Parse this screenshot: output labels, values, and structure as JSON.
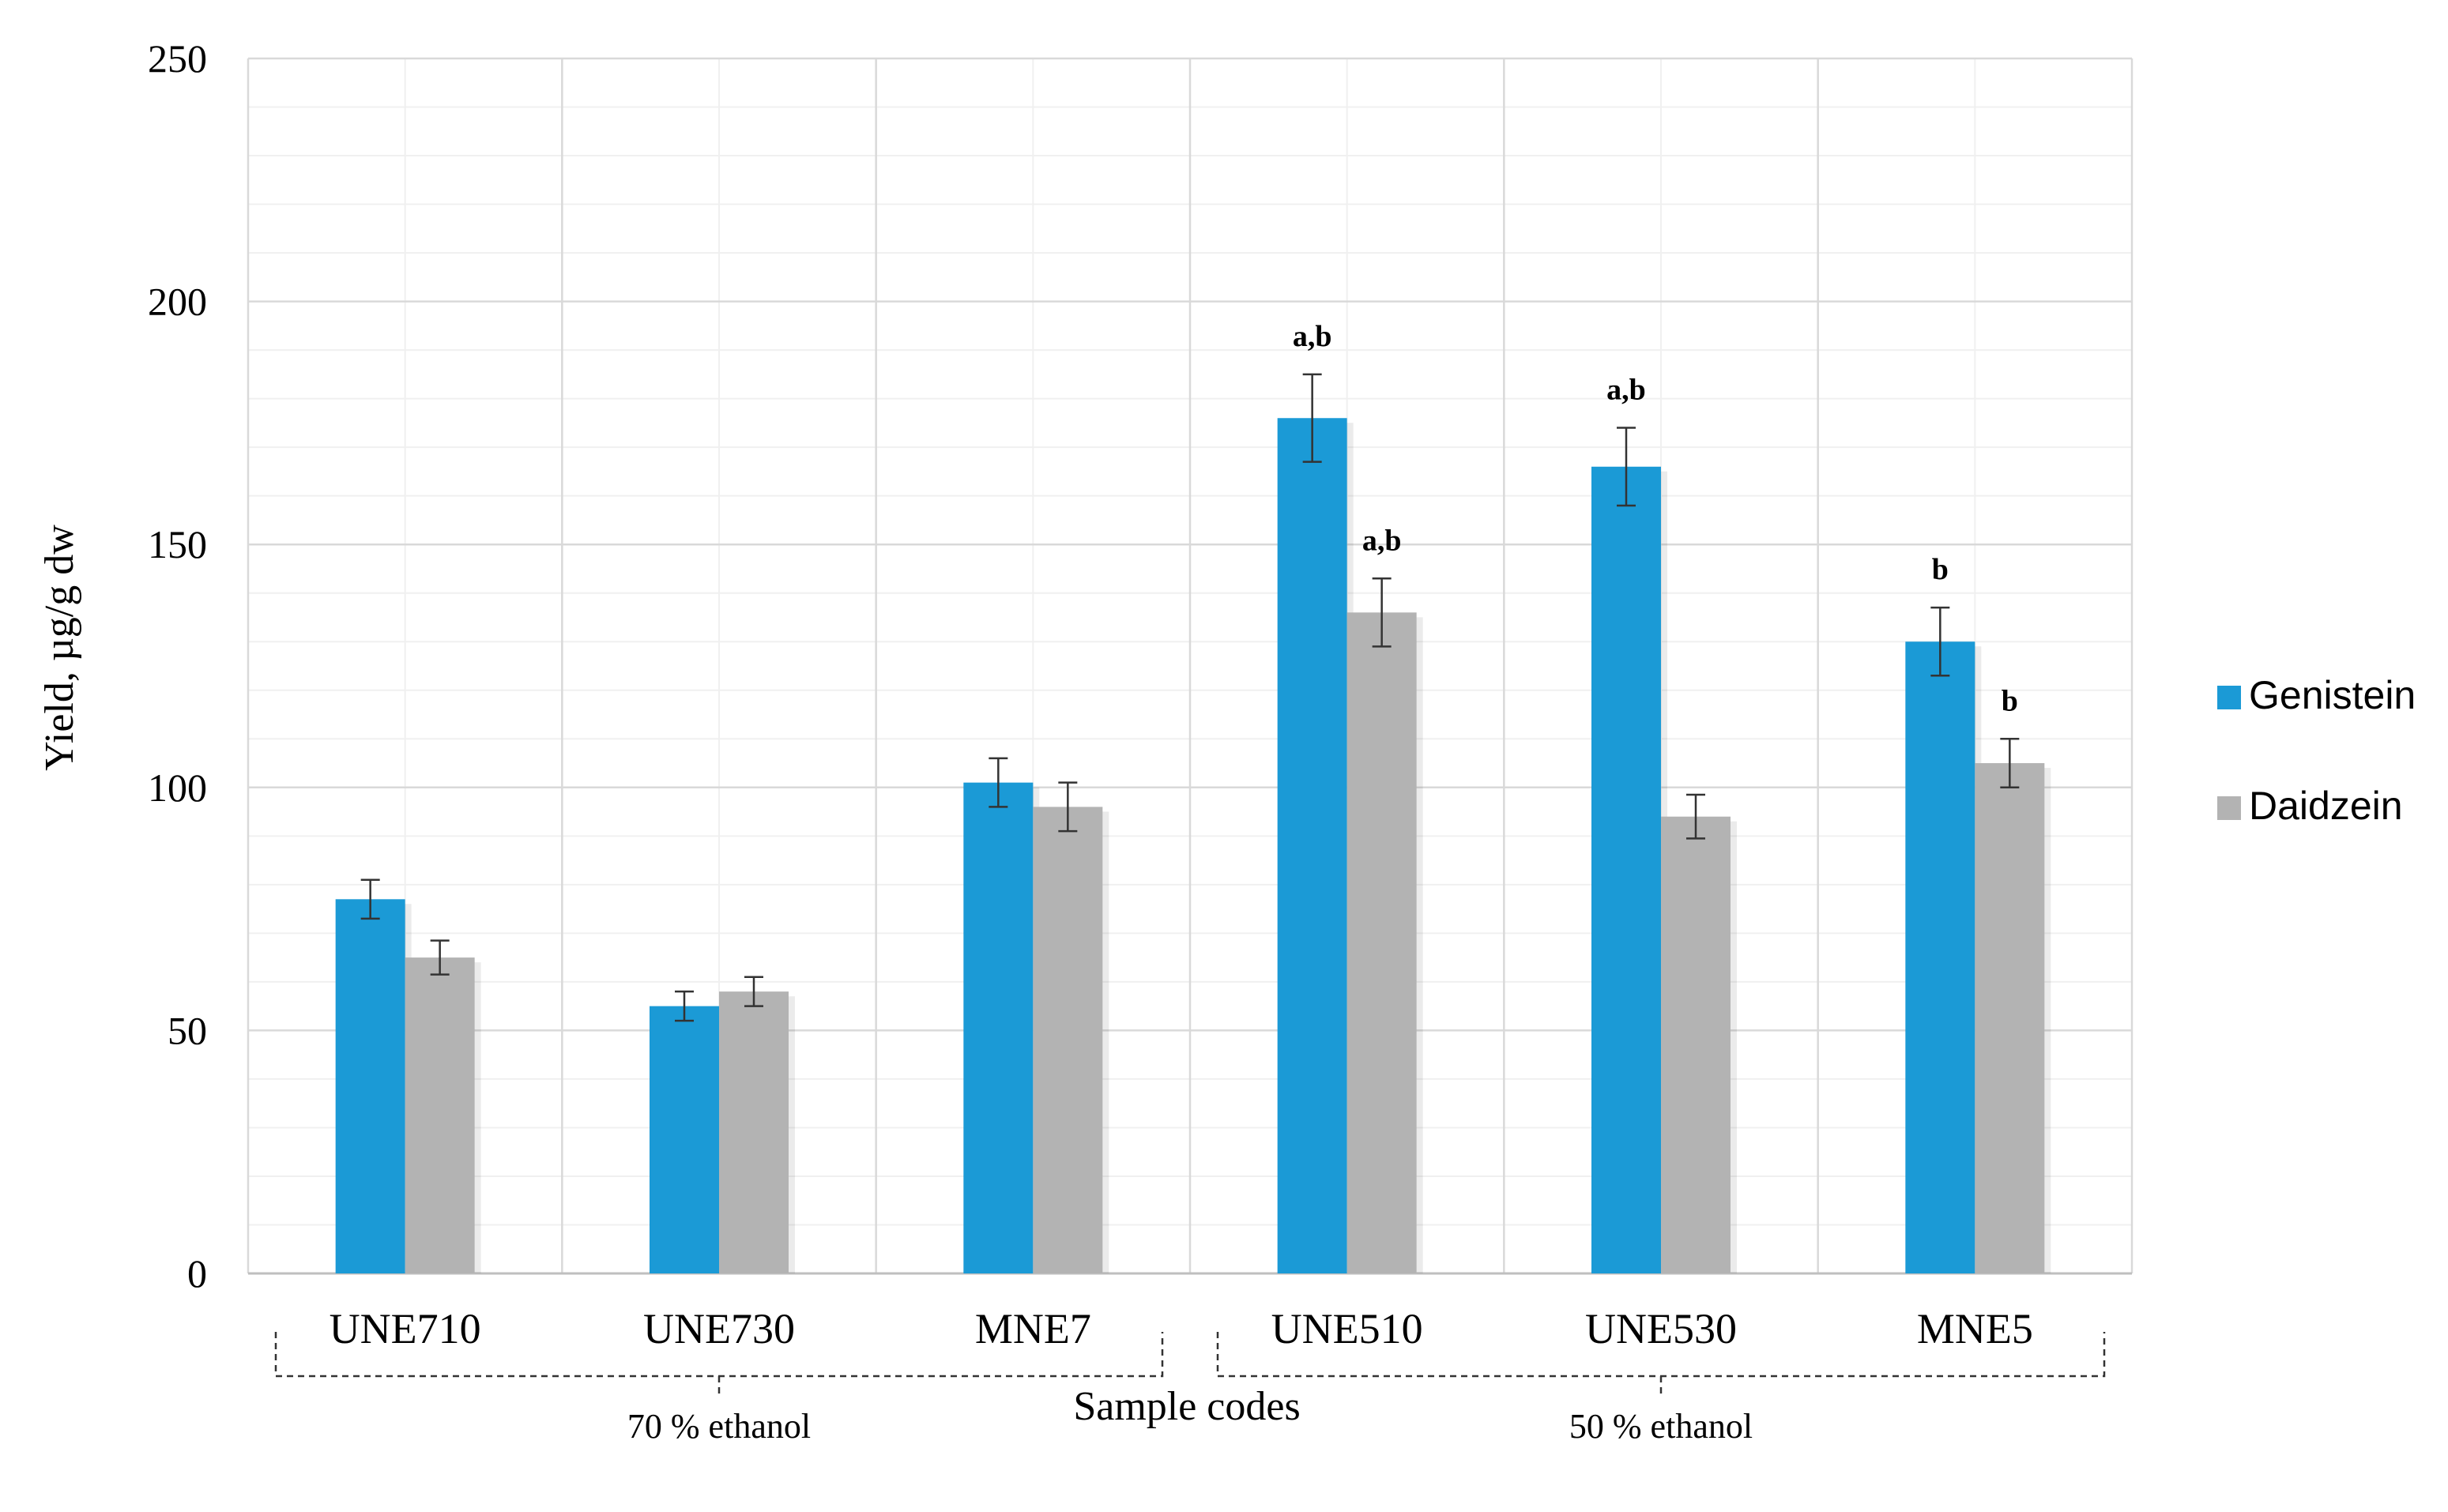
{
  "chart_data": {
    "type": "bar",
    "title": "",
    "xlabel": "Sample codes",
    "ylabel": "Yield, µg/g dw",
    "ylim": [
      0,
      250
    ],
    "yticks": [
      0,
      50,
      100,
      150,
      200,
      250
    ],
    "grid": true,
    "legend_position": "right",
    "categories": [
      "UNE710",
      "UNE730",
      "MNE7",
      "UNE510",
      "UNE530",
      "MNE5"
    ],
    "series": [
      {
        "name": "Genistein",
        "color": "#1b9ad6",
        "values": [
          77,
          55,
          101,
          176,
          166,
          130
        ],
        "errors": [
          4,
          3,
          5,
          9,
          8,
          7
        ],
        "labels": [
          "",
          "",
          "",
          "a,b",
          "a,b",
          "b"
        ]
      },
      {
        "name": "Daidzein",
        "color": "#b3b3b3",
        "values": [
          65,
          58,
          96,
          136,
          94,
          105
        ],
        "errors": [
          3.5,
          3,
          5,
          7,
          4.5,
          5
        ],
        "labels": [
          "",
          "",
          "",
          "a,b",
          "",
          "b"
        ]
      }
    ],
    "groups": [
      {
        "label": "70 % ethanol",
        "categories": [
          "UNE710",
          "UNE730",
          "MNE7"
        ]
      },
      {
        "label": "50 % ethanol",
        "categories": [
          "UNE510",
          "UNE530",
          "MNE5"
        ]
      }
    ]
  }
}
